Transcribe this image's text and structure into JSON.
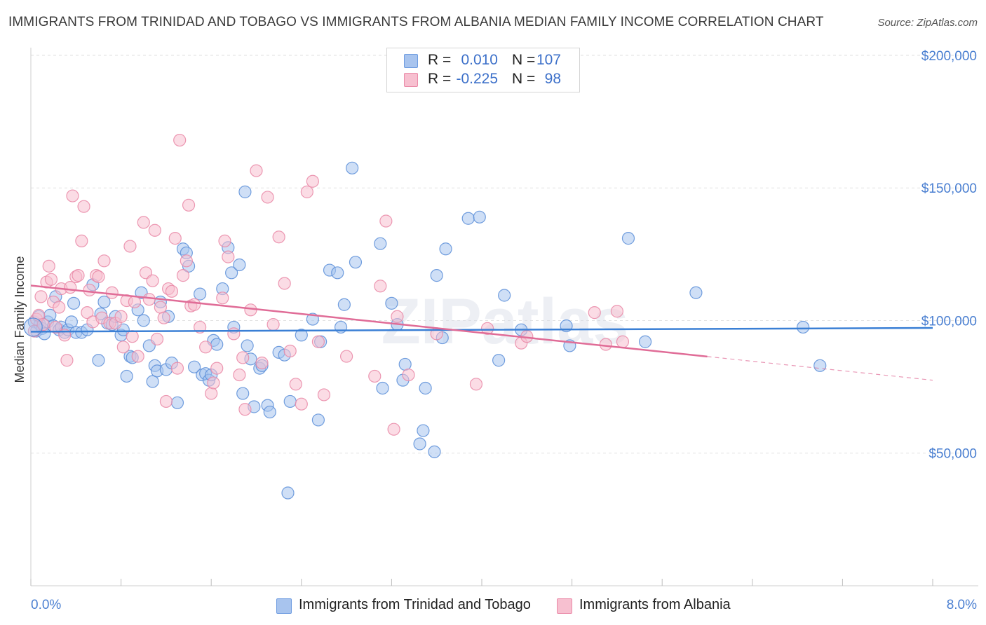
{
  "title": "IMMIGRANTS FROM TRINIDAD AND TOBAGO VS IMMIGRANTS FROM ALBANIA MEDIAN FAMILY INCOME CORRELATION CHART",
  "source": "Source: ZipAtlas.com",
  "watermark": "ZIPatlas",
  "legend_top": [
    {
      "r_label": "R =",
      "r_value": "0.010",
      "n_label": "N =",
      "n_value": "107",
      "color": "#a8c4ee",
      "border": "#6d9be0"
    },
    {
      "r_label": "R =",
      "r_value": "-0.225",
      "n_label": "N =",
      "n_value": "98",
      "color": "#f7c0d0",
      "border": "#ea8aa8"
    }
  ],
  "colors": {
    "blue_fill": "#a8c4ee",
    "blue_stroke": "#5b8ed8",
    "blue_line": "#3a7fd5",
    "pink_fill": "#f7c0d0",
    "pink_stroke": "#e987a6",
    "pink_line": "#e06c97",
    "tick_label": "#4a7fd1",
    "grid": "#e2e2e2"
  },
  "chart_data": {
    "type": "scatter",
    "title": "IMMIGRANTS FROM TRINIDAD AND TOBAGO VS IMMIGRANTS FROM ALBANIA MEDIAN FAMILY INCOME CORRELATION CHART",
    "xlabel": "",
    "ylabel": "Median Family Income",
    "xlim": [
      0,
      8
    ],
    "ylim": [
      0,
      205000
    ],
    "x_tick_labels": [
      "0.0%",
      "8.0%"
    ],
    "y_ticks": [
      50000,
      100000,
      150000,
      200000
    ],
    "y_tick_labels": [
      "$50,000",
      "$100,000",
      "$150,000",
      "$200,000"
    ],
    "grid": true,
    "legend_position": "bottom",
    "series": [
      {
        "name": "Immigrants from Trinidad and Tobago",
        "trend": {
          "x0": 0,
          "y0": 95800,
          "x1": 8,
          "y1": 97200,
          "dash_from": null
        },
        "points": [
          [
            0.03,
            99500
          ],
          [
            0.05,
            96000
          ],
          [
            0.07,
            101500
          ],
          [
            0.08,
            98500
          ],
          [
            0.1,
            97000
          ],
          [
            0.12,
            95000
          ],
          [
            0.15,
            99500
          ],
          [
            0.17,
            102000
          ],
          [
            0.2,
            98000
          ],
          [
            0.22,
            109000
          ],
          [
            0.25,
            96500
          ],
          [
            0.27,
            97500
          ],
          [
            0.3,
            95500
          ],
          [
            0.33,
            96500
          ],
          [
            0.36,
            99500
          ],
          [
            0.38,
            106500
          ],
          [
            0.4,
            95500
          ],
          [
            0.45,
            95500
          ],
          [
            0.5,
            96500
          ],
          [
            0.55,
            113500
          ],
          [
            0.6,
            85000
          ],
          [
            0.62,
            102500
          ],
          [
            0.65,
            107000
          ],
          [
            0.68,
            99000
          ],
          [
            0.72,
            98500
          ],
          [
            0.75,
            101500
          ],
          [
            0.8,
            94500
          ],
          [
            0.82,
            96500
          ],
          [
            0.85,
            79000
          ],
          [
            0.88,
            86500
          ],
          [
            0.9,
            86000
          ],
          [
            0.95,
            104000
          ],
          [
            0.98,
            110500
          ],
          [
            1.0,
            100000
          ],
          [
            1.05,
            90500
          ],
          [
            1.08,
            77000
          ],
          [
            1.1,
            83000
          ],
          [
            1.12,
            81000
          ],
          [
            1.15,
            107000
          ],
          [
            1.2,
            81500
          ],
          [
            1.22,
            101500
          ],
          [
            1.25,
            84000
          ],
          [
            1.3,
            69000
          ],
          [
            1.35,
            127000
          ],
          [
            1.38,
            125500
          ],
          [
            1.4,
            120500
          ],
          [
            1.45,
            82500
          ],
          [
            1.5,
            110000
          ],
          [
            1.52,
            79500
          ],
          [
            1.55,
            80000
          ],
          [
            1.58,
            77500
          ],
          [
            1.6,
            79500
          ],
          [
            1.62,
            92500
          ],
          [
            1.65,
            91000
          ],
          [
            1.7,
            112000
          ],
          [
            1.75,
            127500
          ],
          [
            1.78,
            118000
          ],
          [
            1.8,
            97500
          ],
          [
            1.85,
            121000
          ],
          [
            1.88,
            72500
          ],
          [
            1.9,
            148500
          ],
          [
            1.92,
            90500
          ],
          [
            1.95,
            85500
          ],
          [
            1.98,
            67500
          ],
          [
            2.03,
            82000
          ],
          [
            2.05,
            83000
          ],
          [
            2.1,
            68000
          ],
          [
            2.12,
            65500
          ],
          [
            2.2,
            88000
          ],
          [
            2.25,
            87000
          ],
          [
            2.28,
            35000
          ],
          [
            2.3,
            69500
          ],
          [
            2.4,
            94500
          ],
          [
            2.5,
            100500
          ],
          [
            2.55,
            62500
          ],
          [
            2.57,
            92000
          ],
          [
            2.65,
            119000
          ],
          [
            2.72,
            118000
          ],
          [
            2.75,
            97500
          ],
          [
            2.78,
            106000
          ],
          [
            2.85,
            157500
          ],
          [
            2.88,
            122000
          ],
          [
            3.1,
            129000
          ],
          [
            3.12,
            74500
          ],
          [
            3.2,
            106500
          ],
          [
            3.25,
            98500
          ],
          [
            3.3,
            77500
          ],
          [
            3.32,
            83500
          ],
          [
            3.45,
            53500
          ],
          [
            3.48,
            58500
          ],
          [
            3.5,
            74500
          ],
          [
            3.58,
            50500
          ],
          [
            3.6,
            117000
          ],
          [
            3.65,
            93500
          ],
          [
            3.68,
            127000
          ],
          [
            3.88,
            138500
          ],
          [
            3.98,
            139000
          ],
          [
            4.15,
            85000
          ],
          [
            4.2,
            109500
          ],
          [
            4.35,
            96500
          ],
          [
            4.75,
            98000
          ],
          [
            4.78,
            90500
          ],
          [
            5.3,
            131000
          ],
          [
            5.45,
            92000
          ],
          [
            5.9,
            110500
          ],
          [
            6.85,
            97500
          ],
          [
            7.0,
            83000
          ]
        ]
      },
      {
        "name": "Immigrants from Albania",
        "trend": {
          "x0": 0,
          "y0": 113200,
          "x1": 8,
          "y1": 77500,
          "dash_from": 6.0
        },
        "points": [
          [
            0.03,
            96000
          ],
          [
            0.05,
            100500
          ],
          [
            0.07,
            102000
          ],
          [
            0.09,
            109000
          ],
          [
            0.11,
            98500
          ],
          [
            0.14,
            114500
          ],
          [
            0.16,
            120500
          ],
          [
            0.18,
            115500
          ],
          [
            0.2,
            107000
          ],
          [
            0.22,
            97500
          ],
          [
            0.25,
            105000
          ],
          [
            0.27,
            112000
          ],
          [
            0.3,
            94500
          ],
          [
            0.32,
            85000
          ],
          [
            0.35,
            112500
          ],
          [
            0.37,
            147000
          ],
          [
            0.4,
            116500
          ],
          [
            0.42,
            117000
          ],
          [
            0.45,
            130000
          ],
          [
            0.47,
            143000
          ],
          [
            0.5,
            103000
          ],
          [
            0.52,
            111500
          ],
          [
            0.55,
            99500
          ],
          [
            0.58,
            117000
          ],
          [
            0.6,
            116500
          ],
          [
            0.63,
            101000
          ],
          [
            0.65,
            122500
          ],
          [
            0.7,
            99000
          ],
          [
            0.72,
            110500
          ],
          [
            0.75,
            99000
          ],
          [
            0.8,
            101500
          ],
          [
            0.82,
            90000
          ],
          [
            0.85,
            107500
          ],
          [
            0.88,
            128000
          ],
          [
            0.9,
            94000
          ],
          [
            0.92,
            107000
          ],
          [
            0.95,
            86500
          ],
          [
            1.0,
            137000
          ],
          [
            1.02,
            118000
          ],
          [
            1.05,
            108000
          ],
          [
            1.08,
            115000
          ],
          [
            1.1,
            134000
          ],
          [
            1.12,
            93000
          ],
          [
            1.15,
            105000
          ],
          [
            1.18,
            101000
          ],
          [
            1.2,
            69500
          ],
          [
            1.22,
            112000
          ],
          [
            1.25,
            111000
          ],
          [
            1.28,
            131000
          ],
          [
            1.3,
            82000
          ],
          [
            1.32,
            168000
          ],
          [
            1.35,
            117000
          ],
          [
            1.38,
            122500
          ],
          [
            1.4,
            143500
          ],
          [
            1.42,
            105500
          ],
          [
            1.45,
            106000
          ],
          [
            1.5,
            97500
          ],
          [
            1.55,
            90000
          ],
          [
            1.6,
            72500
          ],
          [
            1.62,
            76500
          ],
          [
            1.65,
            82000
          ],
          [
            1.7,
            108500
          ],
          [
            1.72,
            130000
          ],
          [
            1.75,
            124000
          ],
          [
            1.8,
            95000
          ],
          [
            1.85,
            79500
          ],
          [
            1.88,
            86000
          ],
          [
            1.9,
            66500
          ],
          [
            1.95,
            104000
          ],
          [
            2.0,
            156500
          ],
          [
            2.05,
            84000
          ],
          [
            2.1,
            146500
          ],
          [
            2.15,
            98500
          ],
          [
            2.2,
            131500
          ],
          [
            2.25,
            114000
          ],
          [
            2.3,
            88500
          ],
          [
            2.35,
            76000
          ],
          [
            2.4,
            68500
          ],
          [
            2.45,
            148500
          ],
          [
            2.5,
            152500
          ],
          [
            2.55,
            92000
          ],
          [
            2.6,
            72000
          ],
          [
            2.8,
            86500
          ],
          [
            3.05,
            79000
          ],
          [
            3.1,
            113000
          ],
          [
            3.15,
            137500
          ],
          [
            3.22,
            59000
          ],
          [
            3.25,
            101500
          ],
          [
            3.35,
            79500
          ],
          [
            3.6,
            95000
          ],
          [
            3.95,
            76000
          ],
          [
            4.05,
            97000
          ],
          [
            4.35,
            91500
          ],
          [
            4.4,
            94000
          ],
          [
            5.0,
            103000
          ],
          [
            5.1,
            91000
          ],
          [
            5.2,
            103500
          ],
          [
            5.25,
            92000
          ]
        ]
      }
    ]
  },
  "bottom_legend": [
    {
      "label": "Immigrants from Trinidad and Tobago"
    },
    {
      "label": "Immigrants from Albania"
    }
  ]
}
